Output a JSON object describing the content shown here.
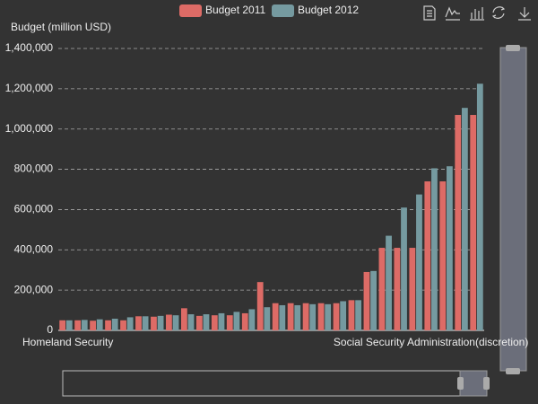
{
  "chart_data": {
    "type": "bar",
    "y_axis_label": "Budget (million USD)",
    "categories": [
      "Homeland Security",
      null,
      null,
      null,
      null,
      null,
      null,
      null,
      null,
      null,
      null,
      null,
      null,
      null,
      null,
      null,
      null,
      null,
      null,
      null,
      null,
      null,
      null,
      null,
      "Social Security Administration(discretion)",
      null,
      null,
      null
    ],
    "series": [
      {
        "name": "Budget 2011",
        "color": "#dd6b66",
        "values": [
          50000,
          50000,
          48000,
          50000,
          50000,
          70000,
          68000,
          78000,
          110000,
          72000,
          75000,
          75000,
          85000,
          240000,
          135000,
          135000,
          135000,
          135000,
          135000,
          150000,
          290000,
          410000,
          410000,
          410000,
          740000,
          740000,
          1070000,
          1070000
        ]
      },
      {
        "name": "Budget 2012",
        "color": "#759aa0",
        "values": [
          50000,
          52000,
          55000,
          58000,
          65000,
          70000,
          72000,
          75000,
          80000,
          80000,
          85000,
          92000,
          105000,
          115000,
          125000,
          125000,
          130000,
          130000,
          145000,
          150000,
          295000,
          470000,
          610000,
          675000,
          805000,
          815000,
          1105000,
          1225000
        ]
      }
    ],
    "ylim": [
      0,
      1400000
    ],
    "yticks": [
      0,
      {
        "value": 200000,
        "label": "200,000"
      },
      {
        "value": 400000,
        "label": "400,000"
      },
      {
        "value": 600000,
        "label": "600,000"
      },
      {
        "value": 800000,
        "label": "800,000"
      },
      {
        "value": 1000000,
        "label": "1,000,000"
      },
      {
        "value": 1200000,
        "label": "1,200,000"
      },
      {
        "value": 1400000,
        "label": "1,400,000"
      }
    ],
    "grid": true
  }
}
